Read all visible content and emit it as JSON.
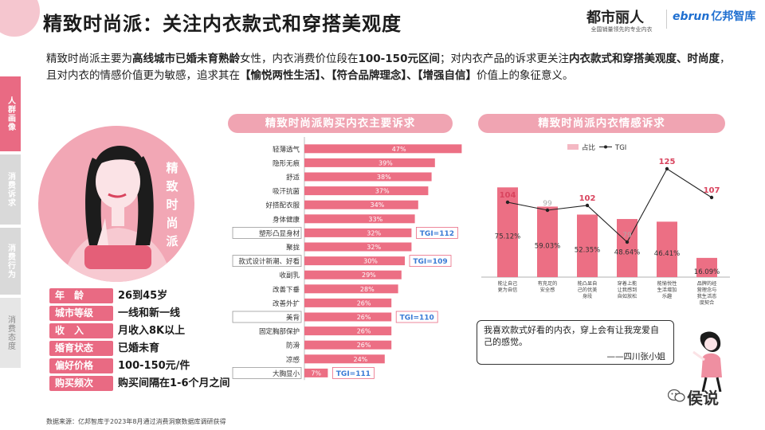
{
  "header": {
    "title": "精致时尚派：关注内衣款式和穿搭美观度",
    "logo_main": "都市丽人",
    "logo_sub": "全国销量领先的专业内衣",
    "logo2_a": "ebrun",
    "logo2_b": "亿邦智库"
  },
  "intro": {
    "t1": "精致时尚派主要为",
    "b1": "高线城市已婚未育熟龄",
    "t2": "女性，内衣消费价位段在",
    "b2": "100-150元区间",
    "t3": "；对内衣产品的诉求更关注",
    "b3": "内衣款式和穿搭美观度、时尚度",
    "t4": "，且对内衣的情感价值更为敏感，追求其在",
    "b4": "【愉悦两性生活】、【符合品牌理念】、【增强自信】",
    "t5": "价值上的象征意义。"
  },
  "sidenav": [
    {
      "label": "人群画像",
      "active": true
    },
    {
      "label": "消费诉求",
      "active": false
    },
    {
      "label": "消费行为",
      "active": false
    },
    {
      "label": "消费态度",
      "active": false
    }
  ],
  "portrait_label": "精致时尚派",
  "profile": [
    {
      "label": "年　龄",
      "value": "26到45岁"
    },
    {
      "label": "城市等级",
      "value": "一线和新一线"
    },
    {
      "label": "收　入",
      "value": "月收入8K以上"
    },
    {
      "label": "婚育状态",
      "value": "已婚未育"
    },
    {
      "label": "偏好价格",
      "value": "100-150元/件"
    },
    {
      "label": "购买频次",
      "value": "购买间隔在1-6个月之间"
    }
  ],
  "source": "数据来源：亿邦智库于2023年8月通过消费洞察数据库调研获得",
  "colors": {
    "accent": "#e96a83",
    "bar": "#ec6f84",
    "pill": "#f0a4b2",
    "tgi_label": "#3a7bd5"
  },
  "chart_data": [
    {
      "type": "bar",
      "orientation": "horizontal",
      "title": "精致时尚派购买内衣主要诉求",
      "categories": [
        "轻薄透气",
        "隐形无痕",
        "舒适",
        "吸汗抗菌",
        "好搭配衣服",
        "身体健康",
        "塑形凸显身材",
        "聚拢",
        "款式设计新潮、好看",
        "收副乳",
        "改善下垂",
        "改善外扩",
        "美背",
        "固定胸部保护",
        "防滑",
        "凉感",
        "大胸显小"
      ],
      "values": [
        47,
        39,
        38,
        37,
        34,
        33,
        32,
        32,
        30,
        29,
        28,
        26,
        26,
        26,
        26,
        24,
        7
      ],
      "value_labels": [
        "47%",
        "39%",
        "38%",
        "37%",
        "34%",
        "33%",
        "32%",
        "32%",
        "30%",
        "29%",
        "28%",
        "26%",
        "26%",
        "26%",
        "26%",
        "24%",
        "7%"
      ],
      "boxed_categories": [
        6,
        8,
        12,
        16
      ],
      "annotations": [
        {
          "category": "塑形凸显身材",
          "text": "TGI=112"
        },
        {
          "category": "款式设计新潮、好看",
          "text": "TGI=109"
        },
        {
          "category": "美背",
          "text": "TGI=110"
        },
        {
          "category": "大胸显小",
          "text": "TGI=111"
        }
      ]
    },
    {
      "type": "bar+line",
      "title": "精致时尚派内衣情感诉求",
      "legend": [
        "占比",
        "TGI"
      ],
      "legend_position": "top",
      "categories": [
        "能让自己更为自信",
        "有充足的安全感",
        "能凸显自己的优美身段",
        "穿着上能让我感到自如放松",
        "能愉悦性生活增加乐趣",
        "品牌的经营理念与我生活态度契合"
      ],
      "series": [
        {
          "name": "占比",
          "type": "bar",
          "values": [
            75.12,
            59.03,
            52.35,
            48.64,
            46.41,
            16.09
          ],
          "labels": [
            "75.12%",
            "59.03%",
            "52.35%",
            "48.64%",
            "46.41%",
            "16.09%"
          ]
        },
        {
          "name": "TGI",
          "type": "line",
          "values": [
            104,
            99,
            102,
            79,
            125,
            107
          ],
          "labels": [
            "104",
            "99",
            "102",
            "79",
            "125",
            "107"
          ],
          "highlight": [
            true,
            false,
            true,
            false,
            true,
            true
          ]
        }
      ]
    }
  ],
  "quote": {
    "text": "我喜欢款式好看的内衣，穿上会有让我宠爱自己的感觉。",
    "author": "——四川张小姐"
  },
  "watermark": "侯说"
}
